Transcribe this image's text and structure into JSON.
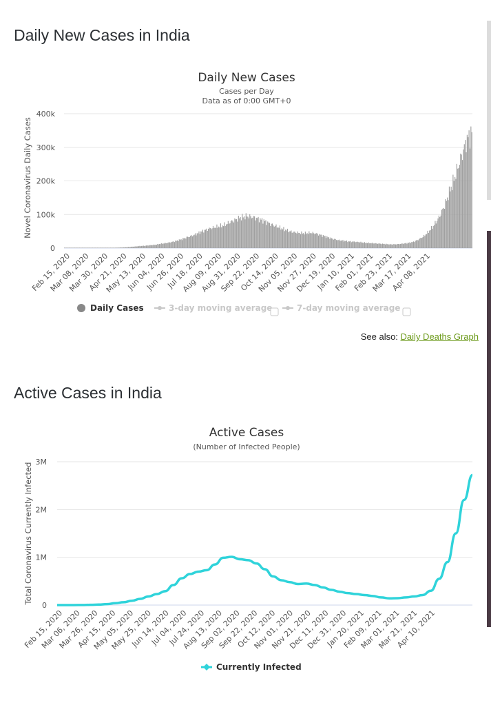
{
  "section1": {
    "heading": "Daily New Cases in India"
  },
  "section2": {
    "heading": "Active Cases in India"
  },
  "see_also": {
    "prefix": "See also:",
    "link": "Daily Deaths Graph"
  },
  "colors": {
    "bars": "#a0a0a0",
    "active_line": "#2fd3da",
    "link": "#6c9a1b",
    "grid": "#e6e6e6",
    "axis": "#ccd6eb"
  },
  "chart_data": [
    {
      "type": "bar",
      "title": "Daily New Cases",
      "subtitle": [
        "Cases per Day",
        "Data as of 0:00 GMT+0"
      ],
      "ylabel": "Novel Coronavirus Daily Cases",
      "ylim": [
        0,
        400000
      ],
      "yticks": [
        0,
        100000,
        200000,
        300000,
        400000
      ],
      "ytick_labels": [
        "0",
        "100k",
        "200k",
        "300k",
        "400k"
      ],
      "xticks": [
        "Feb 15, 2020",
        "Mar 08, 2020",
        "Mar 30, 2020",
        "Apr 21, 2020",
        "May 13, 2020",
        "Jun 04, 2020",
        "Jun 26, 2020",
        "Jul 18, 2020",
        "Aug 09, 2020",
        "Aug 31, 2020",
        "Sep 22, 2020",
        "Oct 14, 2020",
        "Nov 05, 2020",
        "Nov 27, 2020",
        "Dec 19, 2020",
        "Jan 10, 2021",
        "Feb 01, 2021",
        "Feb 23, 2021",
        "Mar 17, 2021",
        "Apr 08, 2021"
      ],
      "x_start": "Feb 15, 2020",
      "x_end": "Apr 25, 2021",
      "weekly_values": [
        0,
        0,
        0,
        0,
        0,
        30,
        60,
        150,
        500,
        1000,
        1500,
        2000,
        3000,
        4500,
        6000,
        7000,
        8500,
        10000,
        13000,
        15000,
        18000,
        22000,
        27000,
        33000,
        38000,
        45000,
        52000,
        58000,
        62000,
        65000,
        70000,
        78000,
        85000,
        92000,
        95000,
        93000,
        88000,
        83000,
        75000,
        68000,
        62000,
        56000,
        50000,
        47000,
        45000,
        44000,
        46000,
        43000,
        38000,
        33000,
        28000,
        24000,
        22000,
        20000,
        19000,
        18000,
        16000,
        15000,
        14000,
        13000,
        12000,
        11000,
        11500,
        13000,
        15000,
        18000,
        25000,
        35000,
        50000,
        70000,
        95000,
        130000,
        175000,
        220000,
        270000,
        320000,
        345000
      ],
      "legend": [
        {
          "label": "Daily Cases",
          "active": true
        },
        {
          "label": "3-day moving average",
          "active": false
        },
        {
          "label": "7-day moving average",
          "active": false
        }
      ]
    },
    {
      "type": "line",
      "title": "Active Cases",
      "subtitle": [
        "(Number of Infected People)"
      ],
      "ylabel": "Total Coronavirus Currently Infected",
      "ylim": [
        0,
        3000000
      ],
      "yticks": [
        0,
        1000000,
        2000000,
        3000000
      ],
      "ytick_labels": [
        "0",
        "1M",
        "2M",
        "3M"
      ],
      "xticks": [
        "Feb 15, 2020",
        "Mar 06, 2020",
        "Mar 26, 2020",
        "Apr 15, 2020",
        "May 05, 2020",
        "May 25, 2020",
        "Jun 14, 2020",
        "Jul 04, 2020",
        "Jul 24, 2020",
        "Aug 13, 2020",
        "Sep 02, 2020",
        "Sep 22, 2020",
        "Oct 12, 2020",
        "Nov 01, 2020",
        "Nov 21, 2020",
        "Dec 11, 2020",
        "Dec 31, 2020",
        "Jan 20, 2021",
        "Feb 09, 2021",
        "Mar 01, 2021",
        "Mar 21, 2021",
        "Apr 10, 2021"
      ],
      "x_start": "Feb 15, 2020",
      "x_end": "Apr 25, 2021",
      "series": [
        {
          "name": "Currently Infected",
          "values": [
            0,
            0,
            0,
            2000,
            5000,
            10000,
            20000,
            40000,
            60000,
            90000,
            130000,
            180000,
            230000,
            290000,
            420000,
            560000,
            650000,
            700000,
            730000,
            850000,
            990000,
            1010000,
            960000,
            940000,
            870000,
            750000,
            600000,
            520000,
            480000,
            440000,
            450000,
            420000,
            370000,
            320000,
            280000,
            250000,
            230000,
            210000,
            190000,
            160000,
            140000,
            145000,
            160000,
            180000,
            210000,
            300000,
            550000,
            900000,
            1500000,
            2200000,
            2720000
          ]
        }
      ]
    }
  ]
}
